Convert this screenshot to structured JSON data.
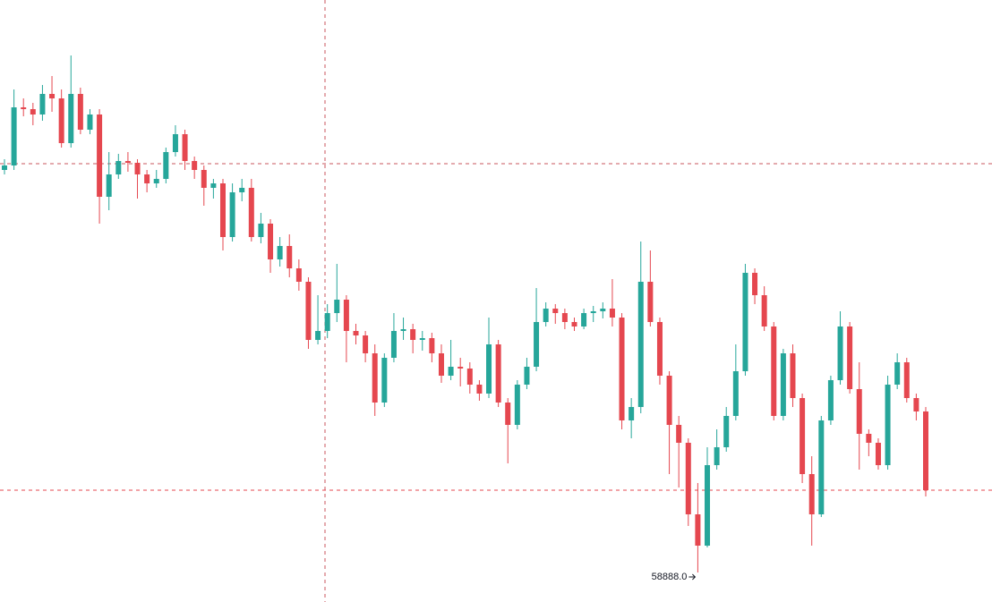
{
  "chart_data": {
    "type": "candlestick",
    "up_color": "#26a69a",
    "down_color": "#e5474f",
    "ylim": [
      58558,
      65288
    ],
    "low_label": {
      "value": 58888,
      "label": "58888.0"
    },
    "candles": [
      [
        63388,
        63508,
        63338,
        63438
      ],
      [
        63438,
        64288,
        63388,
        64088
      ],
      [
        64088,
        64188,
        63988,
        64068
      ],
      [
        64068,
        64138,
        63888,
        64008
      ],
      [
        64008,
        64338,
        63938,
        64238
      ],
      [
        64238,
        64438,
        64038,
        64188
      ],
      [
        64188,
        64288,
        63638,
        63688
      ],
      [
        63688,
        64668,
        63638,
        64238
      ],
      [
        64238,
        64308,
        63788,
        63838
      ],
      [
        63838,
        64068,
        63788,
        64008
      ],
      [
        64008,
        64068,
        62788,
        63088
      ],
      [
        63088,
        63588,
        62938,
        63338
      ],
      [
        63338,
        63568,
        63288,
        63488
      ],
      [
        63488,
        63588,
        63368,
        63468
      ],
      [
        63468,
        63508,
        63068,
        63338
      ],
      [
        63338,
        63388,
        63138,
        63238
      ],
      [
        63238,
        63388,
        63188,
        63288
      ],
      [
        63288,
        63638,
        63238,
        63588
      ],
      [
        63588,
        63888,
        63538,
        63788
      ],
      [
        63788,
        63838,
        63388,
        63488
      ],
      [
        63488,
        63538,
        63288,
        63388
      ],
      [
        63388,
        63438,
        62988,
        63188
      ],
      [
        63188,
        63288,
        63068,
        63238
      ],
      [
        63238,
        63288,
        62488,
        62638
      ],
      [
        62638,
        63238,
        62588,
        63138
      ],
      [
        63138,
        63288,
        63038,
        63188
      ],
      [
        63188,
        63288,
        62588,
        62638
      ],
      [
        62638,
        62908,
        62568,
        62788
      ],
      [
        62788,
        62838,
        62238,
        62388
      ],
      [
        62388,
        62638,
        62308,
        62538
      ],
      [
        62538,
        62668,
        62188,
        62288
      ],
      [
        62288,
        62388,
        62038,
        62138
      ],
      [
        62138,
        62188,
        61388,
        61488
      ],
      [
        61488,
        61988,
        61438,
        61588
      ],
      [
        61588,
        61888,
        61508,
        61788
      ],
      [
        61788,
        62338,
        61688,
        61938
      ],
      [
        61938,
        61988,
        61238,
        61588
      ],
      [
        61588,
        61668,
        61438,
        61538
      ],
      [
        61538,
        61588,
        61238,
        61338
      ],
      [
        61338,
        61438,
        60638,
        60788
      ],
      [
        60788,
        61338,
        60738,
        61288
      ],
      [
        61288,
        61788,
        61238,
        61588
      ],
      [
        61588,
        61738,
        61488,
        61608
      ],
      [
        61608,
        61668,
        61338,
        61488
      ],
      [
        61488,
        61588,
        61368,
        61508
      ],
      [
        61508,
        61568,
        61238,
        61338
      ],
      [
        61338,
        61438,
        61008,
        61088
      ],
      [
        61088,
        61488,
        61038,
        61188
      ],
      [
        61188,
        61288,
        60968,
        61168
      ],
      [
        61168,
        61238,
        60888,
        60988
      ],
      [
        60988,
        61038,
        60808,
        60888
      ],
      [
        60888,
        61738,
        60838,
        61438
      ],
      [
        61438,
        61488,
        60738,
        60788
      ],
      [
        60788,
        60838,
        60108,
        60538
      ],
      [
        60538,
        61038,
        60488,
        60988
      ],
      [
        60988,
        61288,
        60938,
        61188
      ],
      [
        61188,
        62068,
        61138,
        61688
      ],
      [
        61688,
        61908,
        61638,
        61838
      ],
      [
        61838,
        61888,
        61668,
        61788
      ],
      [
        61788,
        61838,
        61608,
        61688
      ],
      [
        61688,
        61738,
        61588,
        61638
      ],
      [
        61638,
        61838,
        61608,
        61788
      ],
      [
        61788,
        61868,
        61688,
        61808
      ],
      [
        61808,
        61908,
        61728,
        61838
      ],
      [
        61838,
        62168,
        61638,
        61738
      ],
      [
        61738,
        61788,
        60488,
        60588
      ],
      [
        60588,
        60838,
        60388,
        60738
      ],
      [
        60738,
        62588,
        60668,
        62138
      ],
      [
        62138,
        62488,
        61638,
        61688
      ],
      [
        61688,
        61738,
        60988,
        61088
      ],
      [
        61088,
        61138,
        59988,
        60538
      ],
      [
        60538,
        60638,
        59838,
        60338
      ],
      [
        60338,
        60388,
        59408,
        59538
      ],
      [
        59538,
        59888,
        58888,
        59188
      ],
      [
        59188,
        60288,
        59168,
        60088
      ],
      [
        60088,
        60488,
        60038,
        60288
      ],
      [
        60288,
        60738,
        60238,
        60638
      ],
      [
        60638,
        61438,
        60588,
        61138
      ],
      [
        61138,
        62338,
        61088,
        62238
      ],
      [
        62238,
        62288,
        61888,
        61988
      ],
      [
        61988,
        62088,
        61588,
        61638
      ],
      [
        61638,
        61688,
        60588,
        60638
      ],
      [
        60638,
        61388,
        60588,
        61338
      ],
      [
        61338,
        61438,
        60738,
        60838
      ],
      [
        60838,
        60888,
        59888,
        59988
      ],
      [
        59988,
        60188,
        59188,
        59538
      ],
      [
        59538,
        60638,
        59508,
        60588
      ],
      [
        60588,
        61088,
        60538,
        61038
      ],
      [
        61038,
        61808,
        60988,
        61638
      ],
      [
        61638,
        61688,
        60888,
        60938
      ],
      [
        60938,
        61238,
        60038,
        60438
      ],
      [
        60438,
        60488,
        60188,
        60338
      ],
      [
        60338,
        60388,
        60038,
        60088
      ],
      [
        60088,
        61088,
        60038,
        60988
      ],
      [
        60988,
        61338,
        60938,
        61238
      ],
      [
        61238,
        61288,
        60788,
        60838
      ],
      [
        60838,
        60888,
        60588,
        60688
      ],
      [
        60688,
        60738,
        59738,
        59808
      ]
    ]
  }
}
